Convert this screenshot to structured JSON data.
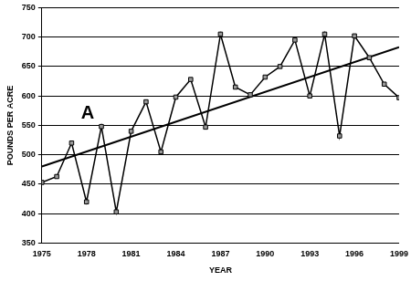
{
  "chart_data": {
    "type": "line",
    "x_label": "YEAR",
    "y_label": "POUNDS PER ACRE",
    "annotations": [
      "A"
    ],
    "series": [
      {
        "x": [
          1975,
          1976,
          1977,
          1978,
          1979,
          1980,
          1981,
          1982,
          1983,
          1984,
          1985,
          1986,
          1987,
          1988,
          1989,
          1990,
          1991,
          1992,
          1993,
          1994,
          1995,
          1996,
          1997,
          1998,
          1999
        ],
        "values": [
          453,
          463,
          520,
          420,
          548,
          403,
          540,
          590,
          505,
          598,
          628,
          547,
          705,
          615,
          602,
          632,
          650,
          695,
          600,
          705,
          532,
          702,
          665,
          620,
          597
        ],
        "color": "#000000",
        "marker": "square",
        "line_style": "solid"
      },
      {
        "x": [
          1975,
          1999
        ],
        "values": [
          480,
          683
        ],
        "color": "#000000",
        "marker": "none",
        "line_style": "solid"
      }
    ],
    "xlim": [
      1975,
      1999
    ],
    "xticks": [
      1975,
      1978,
      1981,
      1984,
      1987,
      1990,
      1993,
      1996,
      1999
    ],
    "ylim": [
      350,
      750
    ],
    "yticks": [
      350,
      400,
      450,
      500,
      550,
      600,
      650,
      700,
      750
    ],
    "grid": "y"
  }
}
